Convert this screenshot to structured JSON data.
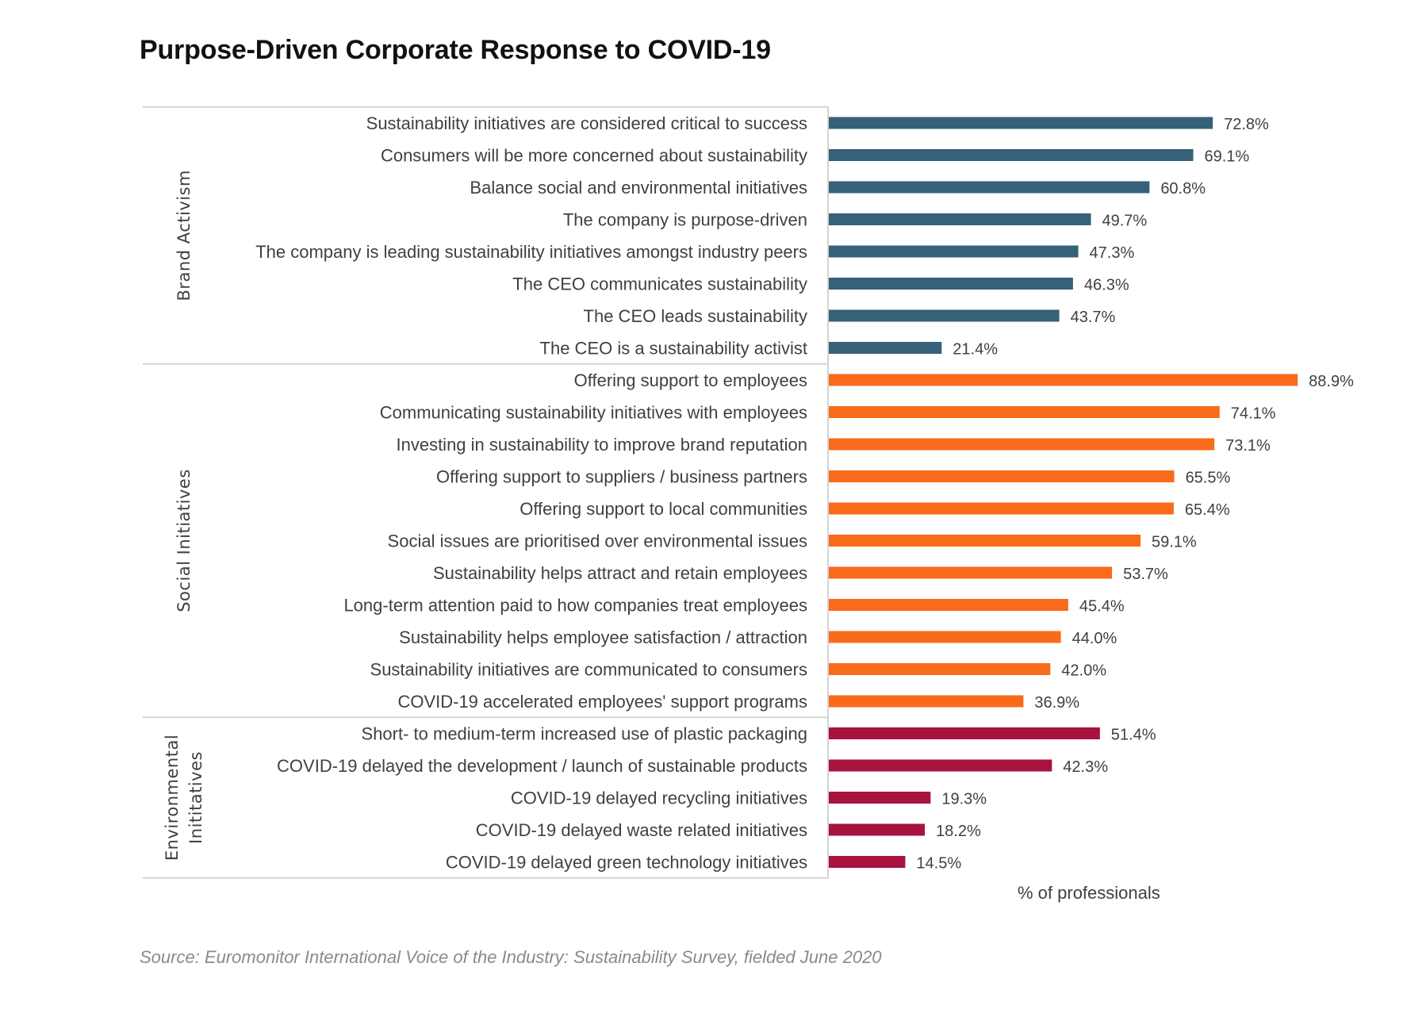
{
  "title": "Purpose-Driven Corporate Response to COVID-19",
  "source": "Source: Euromonitor International Voice of the Industry: Sustainability Survey, fielded June 2020",
  "chart_data": {
    "type": "bar",
    "orientation": "horizontal",
    "title": "Purpose-Driven Corporate Response to COVID-19",
    "xlabel": "% of professionals",
    "ylabel": "",
    "xlim": [
      0,
      100
    ],
    "grid": false,
    "legend": "none",
    "value_suffix": "%",
    "groups": [
      {
        "name": "Brand Activism",
        "color": "#376079",
        "categories": [
          "Sustainability initiatives are considered critical to success",
          "Consumers will be more concerned about sustainability",
          "Balance social and environmental initiatives",
          "The company is purpose-driven",
          "The company is leading sustainability initiatives amongst industry peers",
          "The CEO communicates sustainability",
          "The CEO leads sustainability",
          "The CEO is a sustainability activist"
        ],
        "values": [
          72.8,
          69.1,
          60.8,
          49.7,
          47.3,
          46.3,
          43.7,
          21.4
        ]
      },
      {
        "name": "Social Initiatives",
        "color": "#F96B1B",
        "categories": [
          "Offering support to employees",
          "Communicating sustainability initiatives with employees",
          "Investing in sustainability to improve brand reputation",
          "Offering support to suppliers / business partners",
          "Offering support to local communities",
          "Social issues are prioritised over environmental issues",
          "Sustainability helps attract and retain employees",
          "Long-term attention paid to how companies treat employees",
          "Sustainability helps employee satisfaction / attraction",
          "Sustainability initiatives are communicated to consumers",
          "COVID-19 accelerated employees' support programs"
        ],
        "values": [
          88.9,
          74.1,
          73.1,
          65.5,
          65.4,
          59.1,
          53.7,
          45.4,
          44.0,
          42.0,
          36.9
        ]
      },
      {
        "name": "Environmental Inititatives",
        "name_lines": [
          "Environmental",
          "Inititatives"
        ],
        "color": "#A8123E",
        "categories": [
          "Short- to medium-term increased use of plastic packaging",
          "COVID-19 delayed the development / launch of sustainable products",
          "COVID-19 delayed recycling initiatives",
          "COVID-19 delayed waste related initiatives",
          "COVID-19 delayed green technology initiatives"
        ],
        "values": [
          51.4,
          42.3,
          19.3,
          18.2,
          14.5
        ]
      }
    ]
  }
}
